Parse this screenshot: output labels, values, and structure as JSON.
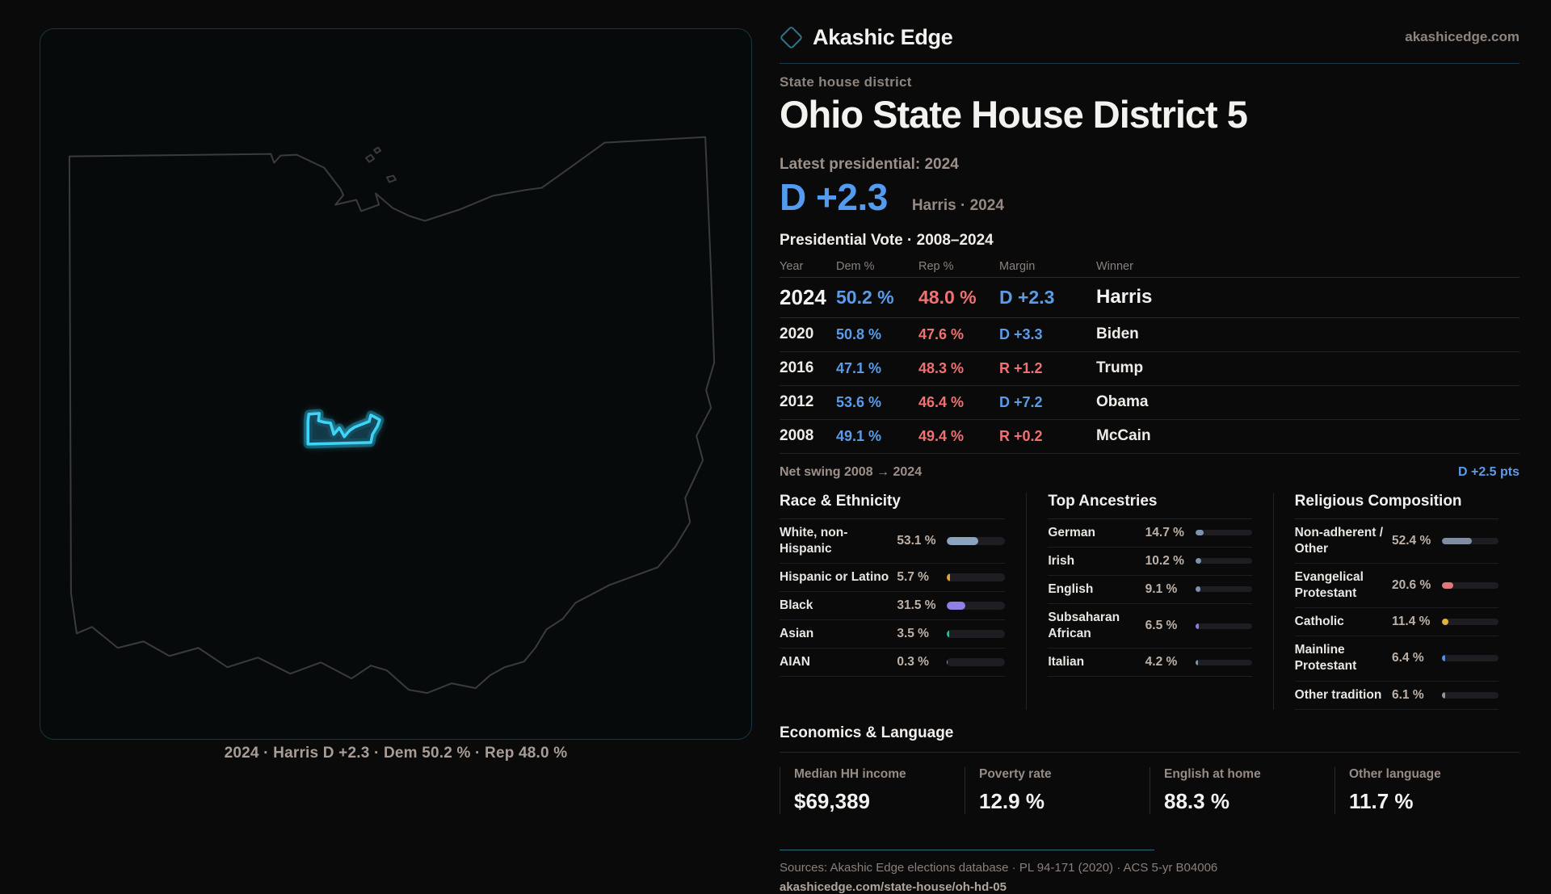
{
  "brand": {
    "name": "Akashic Edge",
    "site": "akashicedge.com"
  },
  "map": {
    "caption": "2024 · Harris D +2.3 · Dem 50.2 % · Rep 48.0 %"
  },
  "header": {
    "kicker": "State house district",
    "title": "Ohio State House District 5",
    "latest_label": "Latest presidential: 2024",
    "headline_margin": "D +2.3",
    "headline_context": "Harris · 2024"
  },
  "table": {
    "title": "Presidential Vote · 2008–2024",
    "columns": {
      "year": "Year",
      "dem": "Dem %",
      "rep": "Rep %",
      "margin": "Margin",
      "winner": "Winner"
    },
    "rows": [
      {
        "year": "2024",
        "dem": "50.2 %",
        "rep": "48.0 %",
        "margin": "D +2.3",
        "winner": "Harris",
        "margin_color": "#5b9ce8"
      },
      {
        "year": "2020",
        "dem": "50.8 %",
        "rep": "47.6 %",
        "margin": "D +3.3",
        "winner": "Biden",
        "margin_color": "#5b9ce8"
      },
      {
        "year": "2016",
        "dem": "47.1 %",
        "rep": "48.3 %",
        "margin": "R +1.2",
        "winner": "Trump",
        "margin_color": "#ee7272"
      },
      {
        "year": "2012",
        "dem": "53.6 %",
        "rep": "46.4 %",
        "margin": "D +7.2",
        "winner": "Obama",
        "margin_color": "#5b9ce8"
      },
      {
        "year": "2008",
        "dem": "49.1 %",
        "rep": "49.4 %",
        "margin": "R +0.2",
        "winner": "McCain",
        "margin_color": "#ee7272"
      }
    ]
  },
  "net_swing": {
    "label": "Net swing 2008 → 2024",
    "value": "D +2.5 pts"
  },
  "demographics": {
    "race": {
      "heading": "Race & Ethnicity",
      "rows": [
        {
          "label": "White, non-Hispanic",
          "value": "53.1 %",
          "pct": 53.1,
          "color": "#8ca3bd"
        },
        {
          "label": "Hispanic or Latino",
          "value": "5.7 %",
          "pct": 5.7,
          "color": "#e0a33c"
        },
        {
          "label": "Black",
          "value": "31.5 %",
          "pct": 31.5,
          "color": "#8f80e6"
        },
        {
          "label": "Asian",
          "value": "3.5 %",
          "pct": 3.5,
          "color": "#2fb89a"
        },
        {
          "label": "AIAN",
          "value": "0.3 %",
          "pct": 0.3,
          "color": "#9aa0a8"
        }
      ]
    },
    "ancestries": {
      "heading": "Top Ancestries",
      "rows": [
        {
          "label": "German",
          "value": "14.7 %",
          "pct": 14.7,
          "color": "#7e93ad"
        },
        {
          "label": "Irish",
          "value": "10.2 %",
          "pct": 10.2,
          "color": "#7e93ad"
        },
        {
          "label": "English",
          "value": "9.1 %",
          "pct": 9.1,
          "color": "#7e93ad"
        },
        {
          "label": "Subsaharan African",
          "value": "6.5 %",
          "pct": 6.5,
          "color": "#8a7fe0"
        },
        {
          "label": "Italian",
          "value": "4.2 %",
          "pct": 4.2,
          "color": "#7e93ad"
        }
      ]
    },
    "religion": {
      "heading": "Religious Composition",
      "rows": [
        {
          "label": "Non-adherent / Other",
          "value": "52.4 %",
          "pct": 52.4,
          "color": "#7f8da3"
        },
        {
          "label": "Evangelical Protestant",
          "value": "20.6 %",
          "pct": 20.6,
          "color": "#e07878"
        },
        {
          "label": "Catholic",
          "value": "11.4 %",
          "pct": 11.4,
          "color": "#e0b33c"
        },
        {
          "label": "Mainline Protestant",
          "value": "6.4 %",
          "pct": 6.4,
          "color": "#4f90e0"
        },
        {
          "label": "Other tradition",
          "value": "6.1 %",
          "pct": 6.1,
          "color": "#8f959c"
        }
      ]
    }
  },
  "economics": {
    "heading": "Economics & Language",
    "stats": [
      {
        "label": "Median HH income",
        "value": "$69,389"
      },
      {
        "label": "Poverty rate",
        "value": "12.9 %"
      },
      {
        "label": "English at home",
        "value": "88.3 %"
      },
      {
        "label": "Other language",
        "value": "11.7 %"
      }
    ]
  },
  "footer": {
    "sources": "Sources: Akashic Edge elections database · PL 94-171 (2020) · ACS 5-yr B04006",
    "url": "akashicedge.com/state-house/oh-hd-05"
  }
}
